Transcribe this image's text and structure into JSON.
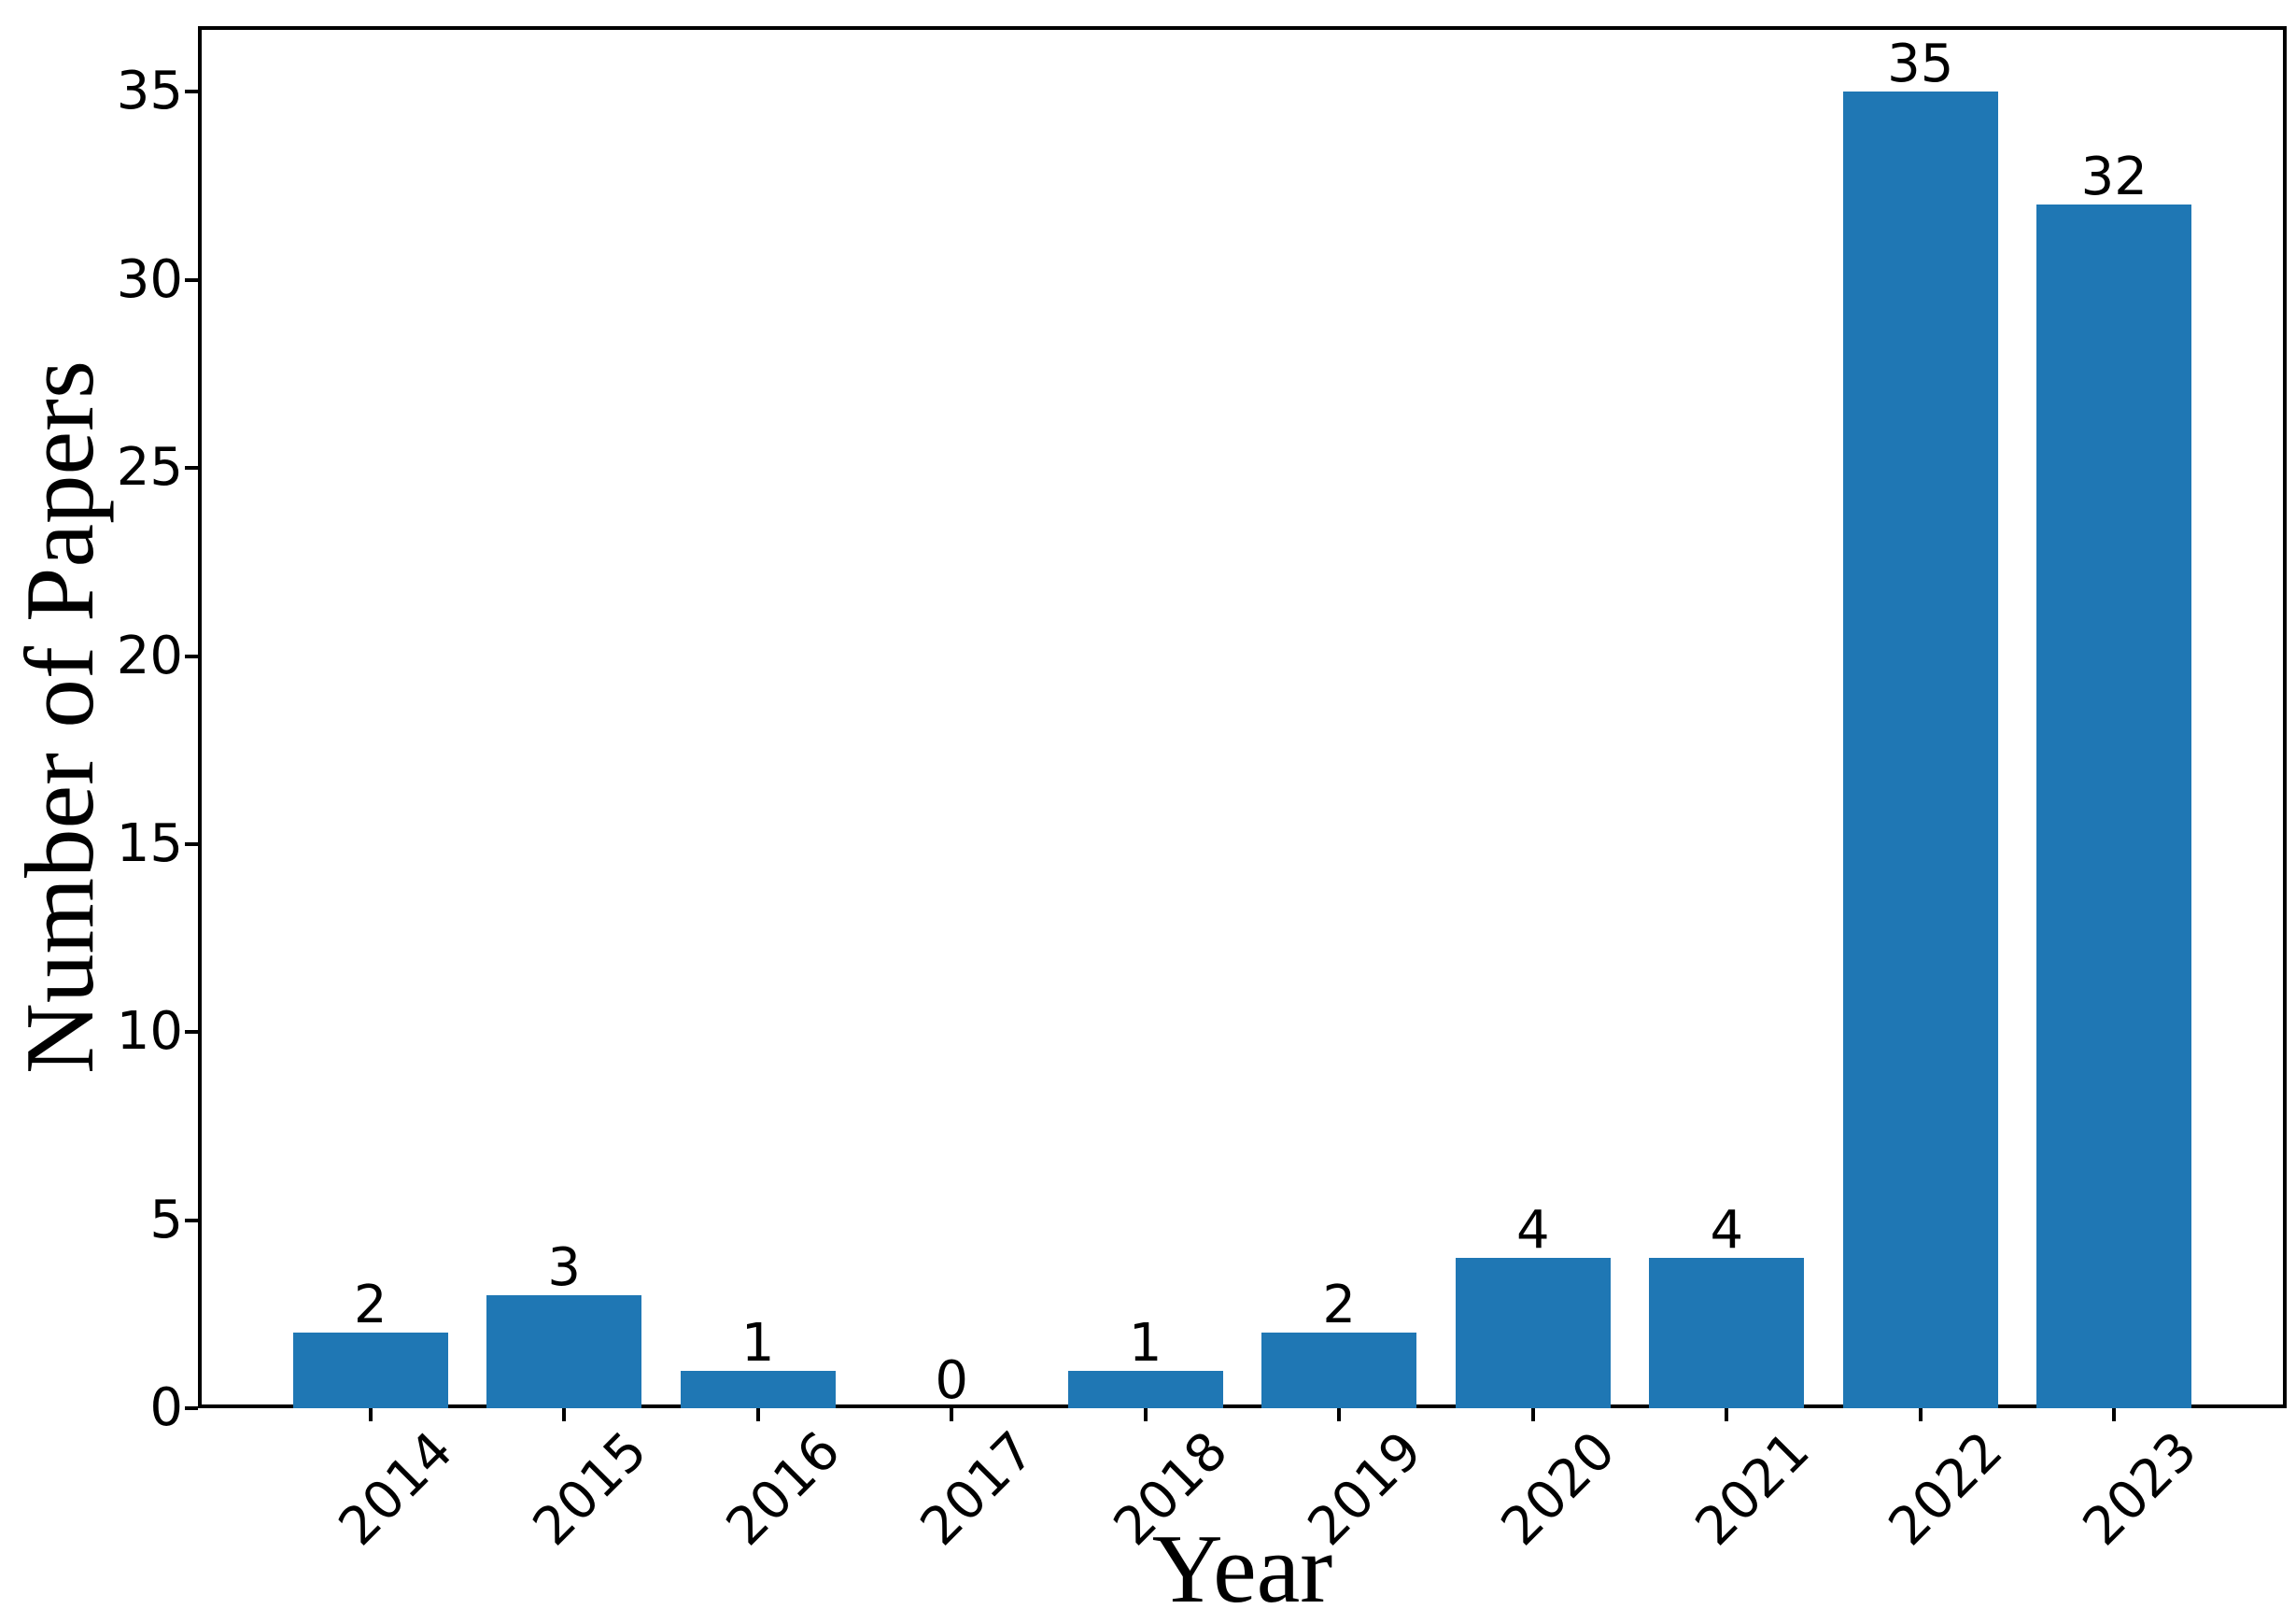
{
  "chart_data": {
    "type": "bar",
    "title": "",
    "xlabel": "Year",
    "ylabel": "Number of Papers",
    "categories": [
      "2014",
      "2015",
      "2016",
      "2017",
      "2018",
      "2019",
      "2020",
      "2021",
      "2022",
      "2023"
    ],
    "values": [
      2,
      3,
      1,
      0,
      1,
      2,
      4,
      4,
      35,
      32
    ],
    "bar_value_labels": [
      "2",
      "3",
      "1",
      "0",
      "1",
      "2",
      "4",
      "4",
      "35",
      "32"
    ],
    "yticks": [
      0,
      5,
      10,
      15,
      20,
      25,
      30,
      35
    ],
    "ytick_labels": [
      "0",
      "5",
      "10",
      "15",
      "20",
      "25",
      "30",
      "35"
    ],
    "ylim": [
      0,
      36.75
    ],
    "xlim": [
      -0.89,
      9.89
    ],
    "bar_width_units": 0.8,
    "x_tick_rotation_deg": 45,
    "grid": false,
    "legend": null,
    "colors": {
      "bar": "#1f77b4",
      "axis": "#000000",
      "text": "#000000",
      "background": "#ffffff"
    }
  }
}
